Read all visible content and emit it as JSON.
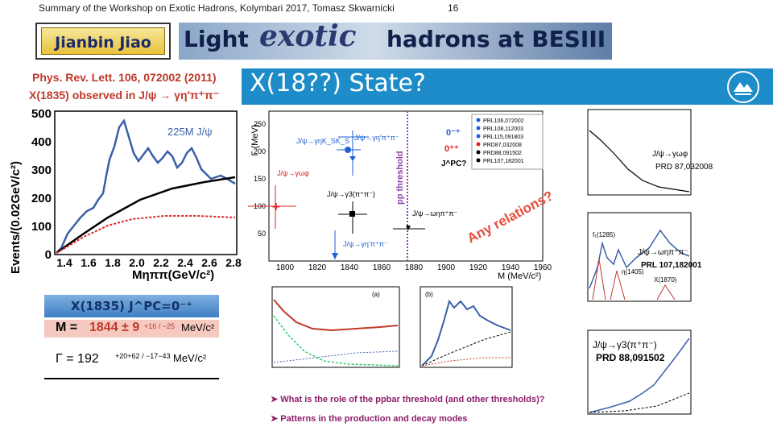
{
  "header": {
    "summary": "Summary of the Workshop on Exotic Hadrons, Kolymbari 2017, Tomasz Skwarnicki",
    "page_number": "16"
  },
  "author": "Jianbin Jiao",
  "title": {
    "part1": "Light",
    "part2": "exotic",
    "part3": "hadrons at BESIII"
  },
  "slide_title": "X(18??) State?",
  "left_text": {
    "ref": "Phys. Rev. Lett. 106, 072002 (2011)",
    "observed": "X(1835) observed in J/ψ → γη′π⁺π⁻"
  },
  "main_plot": {
    "ylabel": "Events/(0.02GeV/c²)",
    "xlabel": "Mηππ(GeV/c²)",
    "legend": "225M  J/ψ",
    "yticks": [
      "0",
      "100",
      "200",
      "300",
      "400",
      "500"
    ],
    "xticks": [
      "1.4",
      "1.6",
      "1.8",
      "2.0",
      "2.2",
      "2.4",
      "2.6",
      "2.8"
    ]
  },
  "results_box": {
    "header": "X(1835)  J^PC=0⁻⁺",
    "mass_label": "M =",
    "mass_value": "1844 ± 9",
    "mass_err": "+16 / −25",
    "mass_unit": "MeV/c²",
    "width_label": "Γ = 192",
    "width_err": "+20+62 / −17−43",
    "width_unit": "MeV/c²"
  },
  "center_plot": {
    "ylabel": "Γ (MeV)",
    "xlabel": "M (MeV/c²)",
    "threshold_label": "pp threshold",
    "xticks": [
      "1800",
      "1820",
      "1840",
      "1860",
      "1880",
      "1900",
      "1920",
      "1940",
      "1960"
    ],
    "yticks": [
      "50",
      "100",
      "150",
      "200",
      "250"
    ],
    "legend": [
      "PRL106,072002",
      "PRL108,112003",
      "PRL115,091803",
      "PRD87,032008",
      "PRD88,091502",
      "PRL107,182001"
    ],
    "jpc": [
      "0⁻⁺",
      "0⁺⁺",
      "J^PC?"
    ],
    "annotations": [
      "J/ψ→γηK_SK_S",
      "J/ψ→γη′π⁺π⁻",
      "J/ψ→γωφ",
      "J/ψ→γ3(π⁺π⁻)",
      "J/ψ→ωηπ⁺π⁻",
      "J/ψ→γη′π⁺π⁻"
    ],
    "slogan": "Any relations?"
  },
  "right_plots": {
    "top_label": "J/ψ→γωφ",
    "top_ref": "PRD 87,032008",
    "mid_label": "J/ψ→ωηπ⁺π⁻",
    "mid_ref": "PRL 107,182001",
    "mid_peaks": [
      "f₁(1285)",
      "η(1405)",
      "X(1870)"
    ],
    "bottom_label": "J/ψ→γ3(π⁺π⁻)",
    "bottom_ref": "PRD 88,091502"
  },
  "bullets": [
    "What is the role of the ppbar threshold (and other thresholds)?",
    "Patterns in the production and decay modes"
  ],
  "colors": {
    "accent_blue": "#1e8cc8",
    "red": "#c0392b",
    "fit_blue": "#3b5fa8"
  }
}
